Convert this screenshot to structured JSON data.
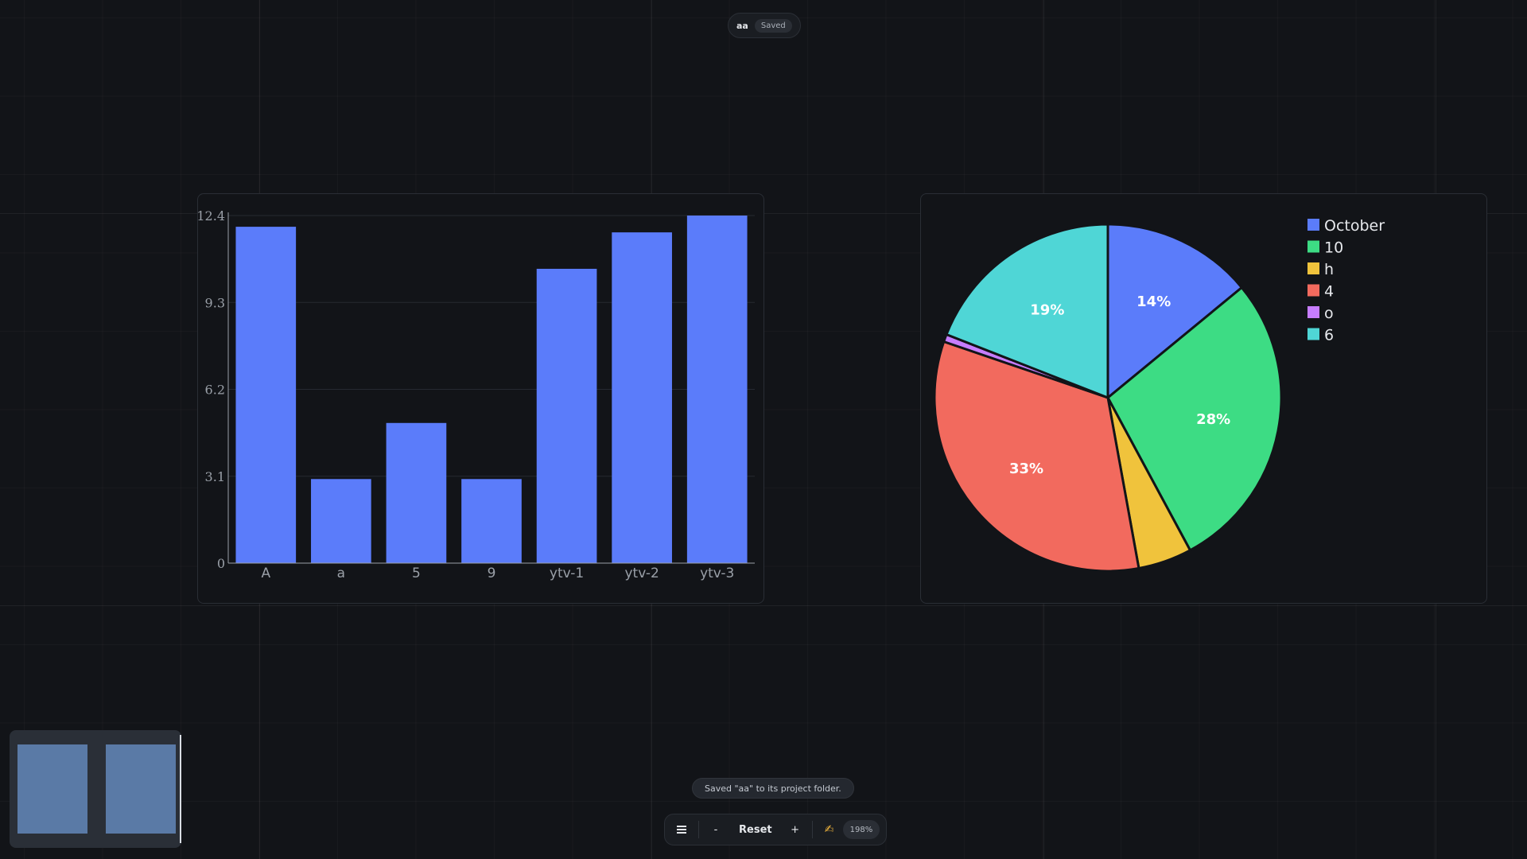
{
  "document": {
    "name": "aa",
    "status": "Saved"
  },
  "toast": "Saved \"aa\" to its project folder.",
  "toolbar": {
    "menu_icon": "hamburger-icon",
    "zoom_out_label": "-",
    "reset_label": "Reset",
    "zoom_in_label": "+",
    "hand_icon": "hand-pointer-icon",
    "hand_glyph": "✍",
    "zoom_level": "198%"
  },
  "chart_data": [
    {
      "type": "bar",
      "categories": [
        "A",
        "a",
        "5",
        "9",
        "ytv-1",
        "ytv-2",
        "ytv-3"
      ],
      "values": [
        12.0,
        3.0,
        5.0,
        3.0,
        10.5,
        11.8,
        12.4
      ],
      "yticks": [
        "0",
        "3.1",
        "6.2",
        "9.3",
        "12.4"
      ],
      "ylim": [
        0,
        12.4
      ],
      "color": "#5b7cfa",
      "grid": true
    },
    {
      "type": "pie",
      "labels": [
        "October",
        "10",
        "h",
        "4",
        "o",
        "6"
      ],
      "values": [
        14,
        28,
        5,
        33,
        0.7,
        19
      ],
      "slice_labels": [
        "14%",
        "28%",
        "",
        "33%",
        "",
        "19%"
      ],
      "colors": [
        "#5b7cfa",
        "#3ddc84",
        "#f0c33c",
        "#f26a5e",
        "#c77dff",
        "#4fd6d6"
      ],
      "legend_position": "top-right"
    }
  ]
}
